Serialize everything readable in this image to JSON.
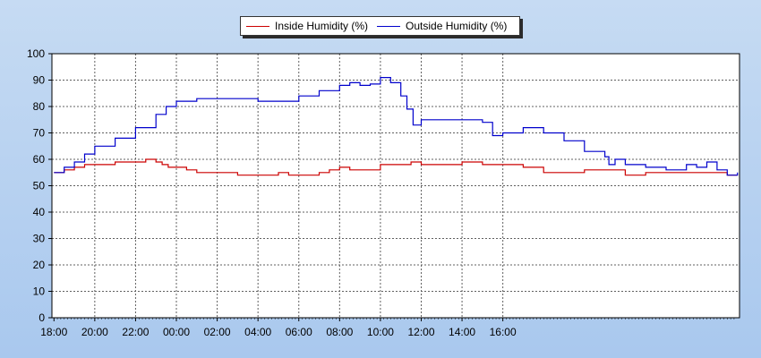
{
  "colors": {
    "background": "#b7d0f0",
    "plot_bg": "#ffffff",
    "grid": "#606060",
    "inside": "#cc0000",
    "outside": "#0000cc"
  },
  "legend": {
    "position": "top-center",
    "items": [
      {
        "label": "Inside Humidity (%)",
        "color": "#cc0000"
      },
      {
        "label": "Outside Humidity (%)",
        "color": "#0000cc"
      }
    ]
  },
  "chart_data": {
    "type": "line",
    "title": "",
    "xlabel": "",
    "ylabel": "",
    "ylim": [
      0,
      100
    ],
    "grid": true,
    "x_unit": "hours since 18:00",
    "x_tick_labels": [
      "18:00",
      "20:00",
      "22:00",
      "00:00",
      "02:00",
      "04:00",
      "06:00",
      "08:00",
      "10:00",
      "12:00",
      "14:00",
      "16:00"
    ],
    "y_ticks": [
      0,
      10,
      20,
      30,
      40,
      50,
      60,
      70,
      80,
      90,
      100
    ],
    "series": [
      {
        "name": "Inside Humidity (%)",
        "color": "#cc0000",
        "points": [
          [
            0,
            55
          ],
          [
            0.5,
            56
          ],
          [
            1,
            57
          ],
          [
            1.5,
            58
          ],
          [
            2,
            58
          ],
          [
            3,
            59
          ],
          [
            4,
            59
          ],
          [
            4.5,
            60
          ],
          [
            5,
            59
          ],
          [
            5.3,
            58
          ],
          [
            5.6,
            57
          ],
          [
            6,
            57
          ],
          [
            6.5,
            56
          ],
          [
            7,
            55
          ],
          [
            8,
            55
          ],
          [
            9,
            54
          ],
          [
            10,
            54
          ],
          [
            11,
            55
          ],
          [
            11.5,
            54
          ],
          [
            12,
            54
          ],
          [
            13,
            55
          ],
          [
            13.5,
            56
          ],
          [
            14,
            57
          ],
          [
            14.5,
            56
          ],
          [
            15,
            56
          ],
          [
            16,
            58
          ],
          [
            17,
            58
          ],
          [
            17.5,
            59
          ],
          [
            18,
            58
          ],
          [
            19,
            58
          ],
          [
            20,
            59
          ],
          [
            21,
            58
          ],
          [
            22,
            58
          ],
          [
            23,
            57
          ],
          [
            24,
            55
          ],
          [
            25,
            55
          ],
          [
            26,
            56
          ],
          [
            27,
            56
          ],
          [
            28,
            54
          ],
          [
            29,
            55
          ],
          [
            30,
            55
          ],
          [
            31,
            55
          ],
          [
            32,
            55
          ],
          [
            33,
            54
          ],
          [
            33.5,
            54
          ]
        ]
      },
      {
        "name": "Outside Humidity (%)",
        "color": "#0000cc",
        "points": [
          [
            0,
            55
          ],
          [
            0.5,
            57
          ],
          [
            1,
            59
          ],
          [
            1.5,
            62
          ],
          [
            2,
            65
          ],
          [
            3,
            68
          ],
          [
            4,
            72
          ],
          [
            5,
            77
          ],
          [
            5.5,
            80
          ],
          [
            6,
            82
          ],
          [
            7,
            83
          ],
          [
            8,
            83
          ],
          [
            9,
            83
          ],
          [
            10,
            82
          ],
          [
            11,
            82
          ],
          [
            12,
            84
          ],
          [
            13,
            86
          ],
          [
            14,
            88
          ],
          [
            14.5,
            89
          ],
          [
            15,
            88
          ],
          [
            15.5,
            88.5
          ],
          [
            16,
            91
          ],
          [
            16.5,
            89
          ],
          [
            17,
            84
          ],
          [
            17.3,
            79
          ],
          [
            17.6,
            73
          ],
          [
            18,
            75
          ],
          [
            19,
            75
          ],
          [
            20,
            75
          ],
          [
            21,
            74
          ],
          [
            21.5,
            69
          ],
          [
            22,
            70
          ],
          [
            23,
            72
          ],
          [
            24,
            70
          ],
          [
            25,
            67
          ],
          [
            26,
            63
          ],
          [
            27,
            61
          ],
          [
            27.2,
            58
          ],
          [
            27.5,
            60
          ],
          [
            28,
            58
          ],
          [
            29,
            57
          ],
          [
            30,
            56
          ],
          [
            31,
            58
          ],
          [
            31.5,
            57
          ],
          [
            32,
            59
          ],
          [
            32.5,
            56
          ],
          [
            33,
            54
          ],
          [
            33.5,
            55
          ]
        ]
      }
    ]
  }
}
